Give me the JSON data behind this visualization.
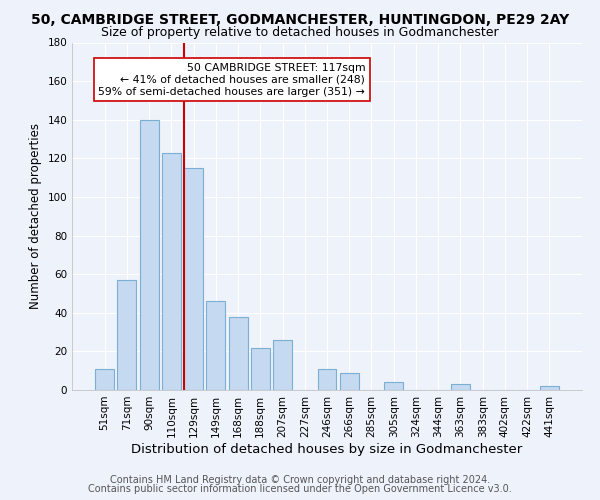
{
  "title": "50, CAMBRIDGE STREET, GODMANCHESTER, HUNTINGDON, PE29 2AY",
  "subtitle": "Size of property relative to detached houses in Godmanchester",
  "xlabel": "Distribution of detached houses by size in Godmanchester",
  "ylabel": "Number of detached properties",
  "bar_labels": [
    "51sqm",
    "71sqm",
    "90sqm",
    "110sqm",
    "129sqm",
    "149sqm",
    "168sqm",
    "188sqm",
    "207sqm",
    "227sqm",
    "246sqm",
    "266sqm",
    "285sqm",
    "305sqm",
    "324sqm",
    "344sqm",
    "363sqm",
    "383sqm",
    "402sqm",
    "422sqm",
    "441sqm"
  ],
  "bar_values": [
    11,
    57,
    140,
    123,
    115,
    46,
    38,
    22,
    26,
    0,
    11,
    9,
    0,
    4,
    0,
    0,
    3,
    0,
    0,
    0,
    2
  ],
  "bar_color": "#c5d9f0",
  "bar_edge_color": "#7bafd4",
  "vline_color": "#cc0000",
  "annotation_text": "50 CAMBRIDGE STREET: 117sqm\n← 41% of detached houses are smaller (248)\n59% of semi-detached houses are larger (351) →",
  "annotation_box_color": "#ffffff",
  "annotation_box_edge": "#cc0000",
  "ylim": [
    0,
    180
  ],
  "yticks": [
    0,
    20,
    40,
    60,
    80,
    100,
    120,
    140,
    160,
    180
  ],
  "footer_line1": "Contains HM Land Registry data © Crown copyright and database right 2024.",
  "footer_line2": "Contains public sector information licensed under the Open Government Licence v3.0.",
  "background_color": "#eef2fb",
  "grid_color": "#ffffff",
  "title_fontsize": 10,
  "subtitle_fontsize": 9,
  "xlabel_fontsize": 9.5,
  "ylabel_fontsize": 8.5,
  "tick_fontsize": 7.5,
  "footer_fontsize": 7
}
